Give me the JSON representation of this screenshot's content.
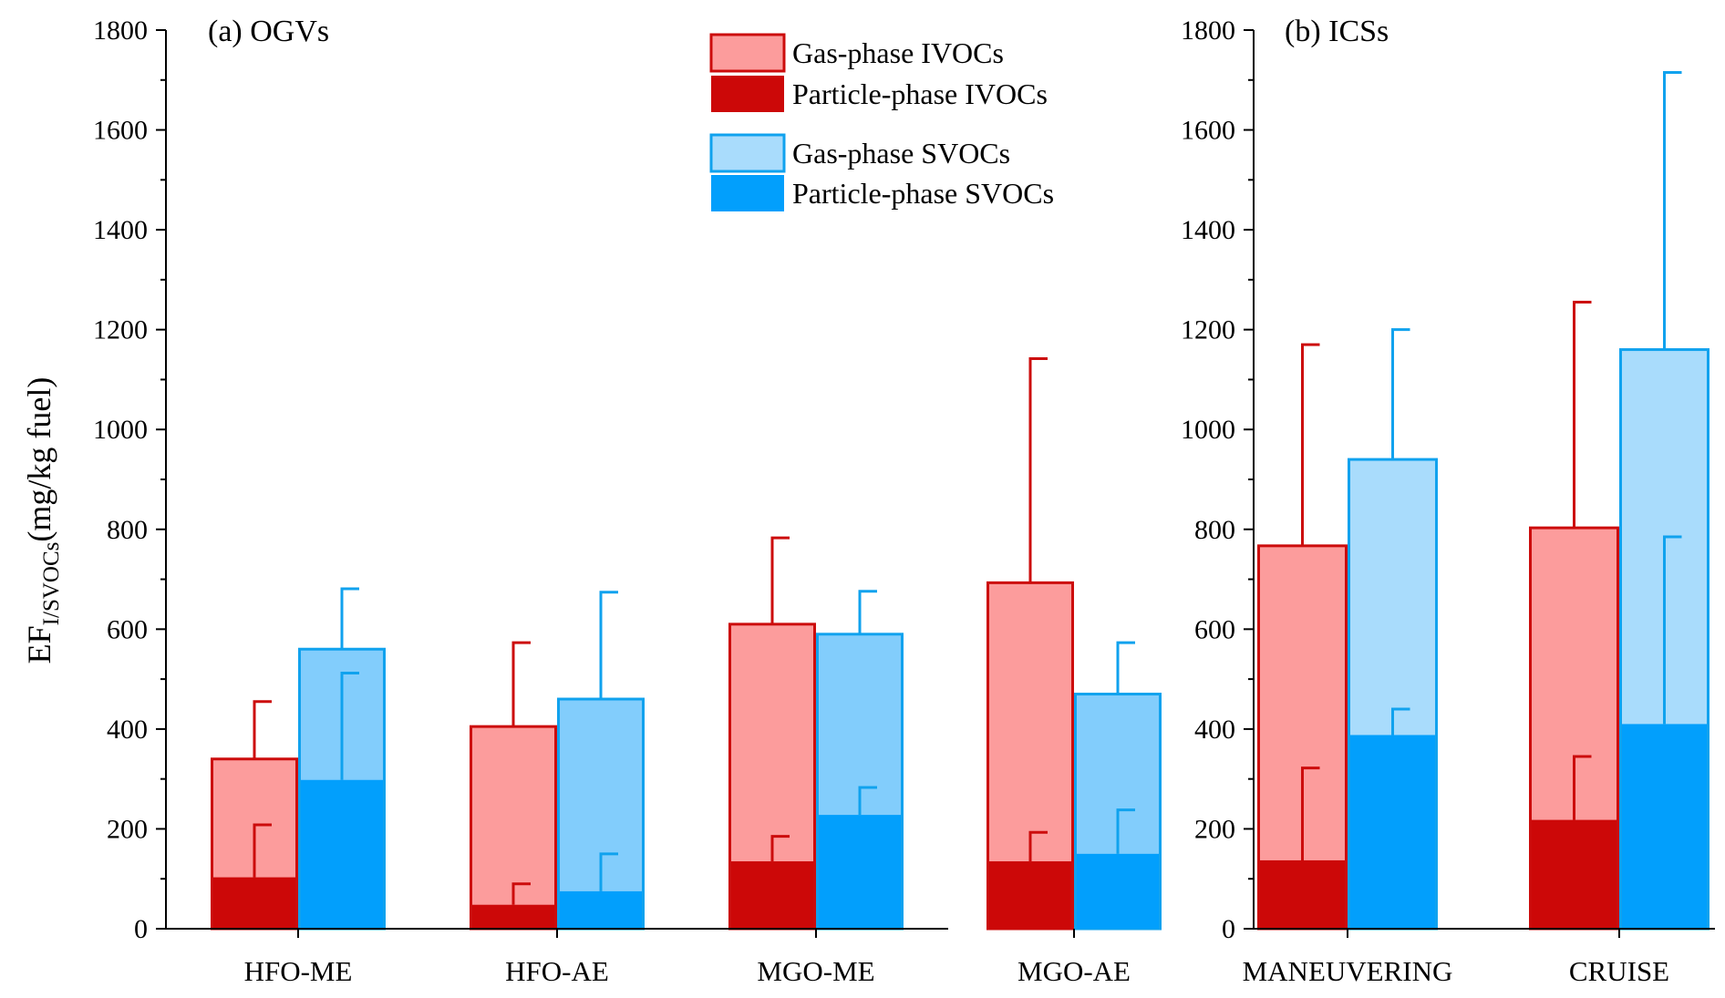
{
  "colors": {
    "gas_ivoc_fill": "#fc9c9c",
    "gas_ivoc_edge": "#cc0c0c",
    "part_ivoc": "#cc0808",
    "gas_svoc_fill": "#82cdfc",
    "gas_svoc_fill_light": "#a9dcfc",
    "gas_svoc_edge": "#10a2ee",
    "part_svoc": "#029ffc"
  },
  "legend": [
    {
      "key": "gas_ivoc",
      "label": "Gas-phase IVOCs"
    },
    {
      "key": "part_ivoc",
      "label": "Particle-phase IVOCs"
    },
    {
      "key": "gas_svoc",
      "label": "Gas-phase SVOCs"
    },
    {
      "key": "part_svoc",
      "label": "Particle-phase SVOCs"
    }
  ],
  "ylabel": {
    "main": "EF",
    "sub": "I/SVOCs",
    "tail": "(mg/kg fuel)"
  },
  "chart_data": [
    {
      "type": "bar",
      "title": "(a) OGVs",
      "categories": [
        "HFO-ME",
        "HFO-AE",
        "MGO-ME",
        "MGO-AE"
      ],
      "ylim": [
        0,
        1800
      ],
      "yticks": [
        0,
        200,
        400,
        600,
        800,
        1000,
        1200,
        1400,
        1600,
        1800
      ],
      "stacked": true,
      "series": [
        {
          "name": "Gas-phase IVOCs",
          "key": "gas_ivoc",
          "group": "IVOC",
          "total": [
            340,
            405,
            610,
            693
          ],
          "total_error_upper": [
            455,
            573,
            783,
            1142
          ]
        },
        {
          "name": "Particle-phase IVOCs",
          "key": "part_ivoc",
          "group": "IVOC",
          "values": [
            103,
            48,
            135,
            135
          ],
          "error_upper": [
            208,
            90,
            185,
            193
          ]
        },
        {
          "name": "Gas-phase SVOCs",
          "key": "gas_svoc",
          "group": "SVOC",
          "total": [
            560,
            460,
            590,
            470
          ],
          "total_error_upper": [
            681,
            674,
            676,
            573
          ]
        },
        {
          "name": "Particle-phase SVOCs",
          "key": "part_svoc",
          "group": "SVOC",
          "values": [
            298,
            75,
            228,
            150
          ],
          "error_upper": [
            512,
            150,
            283,
            238
          ]
        }
      ]
    },
    {
      "type": "bar",
      "title": "(b) ICSs",
      "categories": [
        "MANEUVERING",
        "CRUISE"
      ],
      "ylim": [
        0,
        1800
      ],
      "yticks": [
        0,
        200,
        400,
        600,
        800,
        1000,
        1200,
        1400,
        1600,
        1800
      ],
      "stacked": true,
      "series": [
        {
          "name": "Gas-phase IVOCs",
          "key": "gas_ivoc",
          "group": "IVOC",
          "total": [
            767,
            803
          ],
          "total_error_upper": [
            1170,
            1255
          ]
        },
        {
          "name": "Particle-phase IVOCs",
          "key": "part_ivoc",
          "group": "IVOC",
          "values": [
            137,
            218
          ],
          "error_upper": [
            322,
            345
          ]
        },
        {
          "name": "Gas-phase SVOCs",
          "key": "gas_svoc",
          "group": "SVOC",
          "total": [
            940,
            1160
          ],
          "total_error_upper": [
            1200,
            1715
          ]
        },
        {
          "name": "Particle-phase SVOCs",
          "key": "part_svoc",
          "group": "SVOC",
          "values": [
            388,
            410
          ],
          "error_upper": [
            440,
            785
          ]
        }
      ]
    }
  ]
}
